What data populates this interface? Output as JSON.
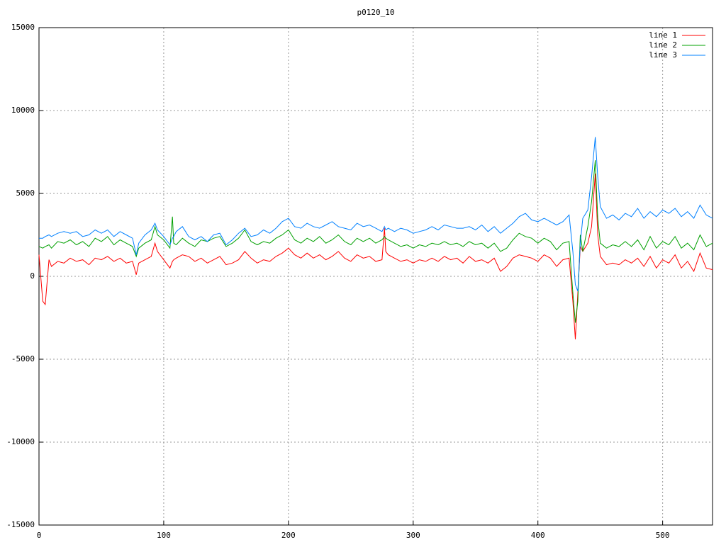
{
  "chart_data": {
    "type": "line",
    "title": "p0120_10",
    "x": [
      0,
      3,
      5,
      8,
      10,
      15,
      20,
      25,
      30,
      35,
      40,
      45,
      50,
      55,
      60,
      65,
      70,
      75,
      78,
      80,
      85,
      90,
      93,
      95,
      100,
      105,
      107,
      108,
      110,
      115,
      120,
      125,
      130,
      135,
      140,
      145,
      150,
      155,
      160,
      165,
      170,
      175,
      180,
      185,
      190,
      195,
      200,
      205,
      210,
      215,
      220,
      225,
      230,
      235,
      240,
      245,
      250,
      255,
      260,
      265,
      270,
      275,
      277,
      278,
      280,
      285,
      290,
      295,
      300,
      305,
      310,
      315,
      320,
      325,
      330,
      335,
      340,
      345,
      350,
      355,
      360,
      365,
      370,
      375,
      380,
      385,
      390,
      395,
      400,
      405,
      410,
      415,
      420,
      425,
      428,
      430,
      432,
      434,
      436,
      440,
      443,
      446,
      448,
      450,
      455,
      460,
      465,
      470,
      475,
      480,
      485,
      490,
      495,
      500,
      505,
      510,
      515,
      520,
      525,
      530,
      535,
      540
    ],
    "series": [
      {
        "name": "line 1",
        "color": "#ff0000",
        "values": [
          1300,
          -1500,
          -1700,
          1000,
          600,
          900,
          800,
          1100,
          900,
          1000,
          700,
          1100,
          1000,
          1200,
          900,
          1100,
          800,
          900,
          100,
          800,
          1000,
          1200,
          2000,
          1500,
          1000,
          500,
          900,
          1000,
          1100,
          1300,
          1200,
          900,
          1100,
          800,
          1000,
          1200,
          700,
          800,
          1000,
          1500,
          1100,
          800,
          1000,
          900,
          1200,
          1400,
          1700,
          1300,
          1100,
          1400,
          1100,
          1300,
          1000,
          1200,
          1500,
          1100,
          900,
          1300,
          1100,
          1200,
          900,
          1000,
          2900,
          1500,
          1300,
          1100,
          900,
          1000,
          800,
          1000,
          900,
          1100,
          900,
          1200,
          1000,
          1100,
          800,
          1200,
          900,
          1000,
          800,
          1100,
          300,
          600,
          1100,
          1300,
          1200,
          1100,
          900,
          1300,
          1100,
          600,
          1000,
          1100,
          -1500,
          -3800,
          -1000,
          1800,
          1500,
          2000,
          3000,
          6200,
          2500,
          1200,
          700,
          800,
          700,
          1000,
          800,
          1100,
          600,
          1200,
          500,
          1000,
          800,
          1300,
          500,
          900,
          300,
          1400,
          500,
          400
        ]
      },
      {
        "name": "line 2",
        "color": "#00a000",
        "values": [
          1800,
          1700,
          1800,
          1900,
          1700,
          2100,
          2000,
          2200,
          1900,
          2100,
          1800,
          2300,
          2100,
          2400,
          1900,
          2200,
          2000,
          1800,
          1200,
          1700,
          2000,
          2200,
          3000,
          2500,
          2200,
          1700,
          3600,
          2000,
          1900,
          2300,
          2000,
          1800,
          2200,
          2100,
          2300,
          2400,
          1800,
          2000,
          2300,
          2800,
          2100,
          1900,
          2100,
          2000,
          2300,
          2500,
          2800,
          2200,
          2000,
          2300,
          2100,
          2400,
          2000,
          2200,
          2500,
          2100,
          1900,
          2300,
          2100,
          2300,
          2000,
          2200,
          2400,
          2300,
          2200,
          2000,
          1800,
          1900,
          1700,
          1900,
          1800,
          2000,
          1900,
          2100,
          1900,
          2000,
          1800,
          2100,
          1900,
          2000,
          1700,
          2000,
          1500,
          1700,
          2200,
          2600,
          2400,
          2300,
          2000,
          2300,
          2100,
          1600,
          2000,
          2100,
          -1000,
          -2800,
          -1500,
          2500,
          1500,
          3000,
          4500,
          7000,
          3500,
          2000,
          1700,
          1900,
          1800,
          2100,
          1800,
          2200,
          1600,
          2400,
          1700,
          2100,
          1900,
          2400,
          1700,
          2000,
          1600,
          2500,
          1800,
          2000
        ]
      },
      {
        "name": "line 3",
        "color": "#0080ff",
        "values": [
          2300,
          2300,
          2400,
          2500,
          2400,
          2600,
          2700,
          2600,
          2700,
          2400,
          2500,
          2800,
          2600,
          2800,
          2400,
          2700,
          2500,
          2300,
          1300,
          2000,
          2500,
          2800,
          3200,
          2800,
          2400,
          1900,
          2300,
          2400,
          2700,
          3000,
          2400,
          2200,
          2400,
          2100,
          2500,
          2600,
          1900,
          2200,
          2600,
          2900,
          2400,
          2500,
          2800,
          2600,
          2900,
          3300,
          3500,
          3000,
          2900,
          3200,
          3000,
          2900,
          3100,
          3300,
          3000,
          2900,
          2800,
          3200,
          3000,
          3100,
          2900,
          2700,
          3000,
          2800,
          2900,
          2700,
          2900,
          2800,
          2600,
          2700,
          2800,
          3000,
          2800,
          3100,
          3000,
          2900,
          2900,
          3000,
          2800,
          3100,
          2700,
          3000,
          2600,
          2900,
          3200,
          3600,
          3800,
          3400,
          3300,
          3500,
          3300,
          3100,
          3300,
          3700,
          1500,
          -500,
          -900,
          2000,
          3500,
          4000,
          6000,
          8400,
          6000,
          4200,
          3500,
          3700,
          3400,
          3800,
          3600,
          4100,
          3500,
          3900,
          3600,
          4000,
          3800,
          4100,
          3600,
          3900,
          3500,
          4300,
          3700,
          3500
        ]
      }
    ],
    "xlim": [
      0,
      540
    ],
    "xticks": [
      0,
      100,
      200,
      300,
      400,
      500
    ],
    "ylim": [
      -15000,
      15000
    ],
    "yticks": [
      -15000,
      -10000,
      -5000,
      0,
      5000,
      10000,
      15000
    ],
    "grid": true,
    "legend": "top-right"
  }
}
